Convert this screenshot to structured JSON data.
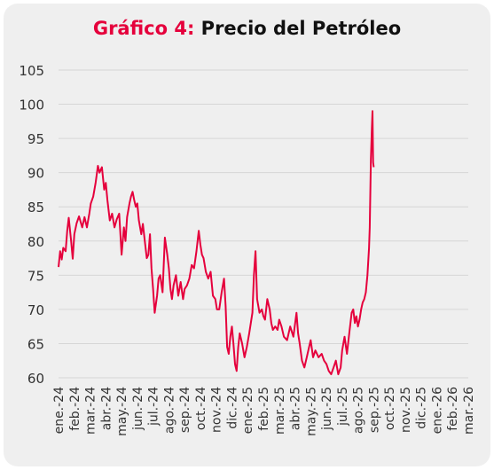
{
  "title": {
    "prefix": "Gráfico 4:",
    "main": "Precio del Petróleo"
  },
  "colors": {
    "line": "#e5003c",
    "title_accent": "#e5003c",
    "grid": "#d6d6d6",
    "background": "#efefef"
  },
  "chart_data": {
    "type": "line",
    "title": "Precio del Petróleo",
    "xlabel": "",
    "ylabel": "",
    "ylim": [
      60,
      105
    ],
    "yticks": [
      60,
      65,
      70,
      75,
      80,
      85,
      90,
      95,
      100,
      105
    ],
    "grid": "horizontal",
    "xticks": [
      "ene.-24",
      "feb.-24",
      "mar.-24",
      "abr.-24",
      "may.-24",
      "jun.-24",
      "jul.-24",
      "ago.-24",
      "sep.-24",
      "oct.-24",
      "nov.-24",
      "dic.-24",
      "ene.-25",
      "feb.-25",
      "mar.-25",
      "abr.-25",
      "may.-25",
      "jun.-25",
      "jul.-25",
      "ago.-25",
      "sep.-25",
      "oct.-25",
      "nov.-25",
      "dic.-25",
      "ene.-26",
      "feb.-26",
      "mar.-26"
    ],
    "series": [
      {
        "values": [
          [
            0.0,
            76.2
          ],
          [
            0.1,
            78.5
          ],
          [
            0.2,
            77.3
          ],
          [
            0.3,
            79.0
          ],
          [
            0.45,
            78.5
          ],
          [
            0.55,
            81.5
          ],
          [
            0.65,
            83.4
          ],
          [
            0.8,
            80.0
          ],
          [
            0.9,
            77.4
          ],
          [
            1.0,
            81.0
          ],
          [
            1.15,
            82.6
          ],
          [
            1.3,
            83.6
          ],
          [
            1.5,
            82.0
          ],
          [
            1.65,
            83.5
          ],
          [
            1.8,
            82.0
          ],
          [
            1.95,
            84.0
          ],
          [
            2.05,
            85.5
          ],
          [
            2.2,
            86.5
          ],
          [
            2.35,
            88.5
          ],
          [
            2.5,
            91.0
          ],
          [
            2.6,
            90.0
          ],
          [
            2.75,
            90.8
          ],
          [
            2.9,
            87.5
          ],
          [
            3.0,
            88.5
          ],
          [
            3.1,
            86.0
          ],
          [
            3.25,
            83.0
          ],
          [
            3.4,
            84.0
          ],
          [
            3.55,
            82.0
          ],
          [
            3.7,
            83.2
          ],
          [
            3.85,
            84.0
          ],
          [
            4.0,
            78.0
          ],
          [
            4.15,
            82.0
          ],
          [
            4.25,
            80.0
          ],
          [
            4.35,
            83.5
          ],
          [
            4.5,
            85.5
          ],
          [
            4.6,
            86.5
          ],
          [
            4.7,
            87.2
          ],
          [
            4.8,
            86.0
          ],
          [
            4.9,
            85.0
          ],
          [
            5.0,
            85.5
          ],
          [
            5.1,
            83.0
          ],
          [
            5.25,
            81.0
          ],
          [
            5.35,
            82.5
          ],
          [
            5.5,
            79.5
          ],
          [
            5.6,
            77.5
          ],
          [
            5.7,
            78.0
          ],
          [
            5.8,
            81.0
          ],
          [
            5.9,
            76.0
          ],
          [
            6.0,
            73.0
          ],
          [
            6.1,
            69.5
          ],
          [
            6.25,
            72.0
          ],
          [
            6.35,
            74.5
          ],
          [
            6.45,
            75.0
          ],
          [
            6.6,
            72.5
          ],
          [
            6.75,
            80.5
          ],
          [
            6.9,
            78.0
          ],
          [
            7.0,
            76.0
          ],
          [
            7.1,
            73.0
          ],
          [
            7.2,
            71.5
          ],
          [
            7.3,
            73.5
          ],
          [
            7.45,
            75.0
          ],
          [
            7.6,
            72.0
          ],
          [
            7.75,
            74.0
          ],
          [
            7.9,
            71.5
          ],
          [
            8.0,
            73.0
          ],
          [
            8.15,
            73.5
          ],
          [
            8.3,
            74.5
          ],
          [
            8.45,
            76.5
          ],
          [
            8.6,
            76.0
          ],
          [
            8.75,
            78.5
          ],
          [
            8.9,
            81.5
          ],
          [
            9.0,
            79.5
          ],
          [
            9.1,
            78.0
          ],
          [
            9.2,
            77.5
          ],
          [
            9.35,
            75.5
          ],
          [
            9.5,
            74.5
          ],
          [
            9.65,
            75.5
          ],
          [
            9.8,
            72.0
          ],
          [
            9.95,
            71.5
          ],
          [
            10.05,
            70.0
          ],
          [
            10.2,
            70.0
          ],
          [
            10.35,
            72.5
          ],
          [
            10.5,
            74.5
          ],
          [
            10.6,
            70.5
          ],
          [
            10.7,
            64.5
          ],
          [
            10.8,
            63.5
          ],
          [
            10.9,
            66.0
          ],
          [
            11.0,
            67.5
          ],
          [
            11.1,
            65.0
          ],
          [
            11.2,
            62.0
          ],
          [
            11.3,
            61.0
          ],
          [
            11.4,
            64.5
          ],
          [
            11.5,
            66.5
          ],
          [
            11.65,
            65.0
          ],
          [
            11.8,
            63.0
          ],
          [
            11.95,
            64.5
          ],
          [
            12.1,
            66.5
          ],
          [
            12.2,
            68.0
          ],
          [
            12.3,
            69.5
          ],
          [
            12.4,
            75.0
          ],
          [
            12.5,
            78.5
          ],
          [
            12.6,
            71.5
          ],
          [
            12.75,
            69.5
          ],
          [
            12.9,
            70.0
          ],
          [
            13.0,
            69.0
          ],
          [
            13.1,
            68.5
          ],
          [
            13.25,
            71.5
          ],
          [
            13.4,
            70.0
          ],
          [
            13.5,
            68.0
          ],
          [
            13.6,
            67.0
          ],
          [
            13.75,
            67.5
          ],
          [
            13.9,
            67.0
          ],
          [
            14.0,
            68.5
          ],
          [
            14.15,
            67.5
          ],
          [
            14.3,
            66.0
          ],
          [
            14.5,
            65.5
          ],
          [
            14.7,
            67.5
          ],
          [
            14.9,
            66.0
          ],
          [
            15.1,
            69.5
          ],
          [
            15.2,
            66.5
          ],
          [
            15.3,
            65.0
          ],
          [
            15.45,
            62.5
          ],
          [
            15.6,
            61.5
          ],
          [
            15.75,
            63.0
          ],
          [
            15.9,
            64.5
          ],
          [
            16.0,
            65.5
          ],
          [
            16.15,
            63.0
          ],
          [
            16.3,
            64.0
          ],
          [
            16.5,
            63.0
          ],
          [
            16.7,
            63.5
          ],
          [
            16.85,
            62.5
          ],
          [
            17.0,
            62.0
          ],
          [
            17.15,
            61.0
          ],
          [
            17.3,
            60.5
          ],
          [
            17.45,
            61.5
          ],
          [
            17.6,
            62.5
          ],
          [
            17.75,
            60.5
          ],
          [
            17.9,
            61.5
          ],
          [
            18.0,
            64.0
          ],
          [
            18.15,
            66.0
          ],
          [
            18.3,
            63.5
          ],
          [
            18.45,
            66.5
          ],
          [
            18.6,
            69.5
          ],
          [
            18.7,
            70.0
          ],
          [
            18.8,
            68.0
          ],
          [
            18.9,
            69.0
          ],
          [
            19.0,
            67.5
          ],
          [
            19.1,
            68.5
          ],
          [
            19.2,
            70.0
          ],
          [
            19.3,
            71.0
          ],
          [
            19.4,
            71.5
          ],
          [
            19.5,
            72.5
          ],
          [
            19.6,
            75.0
          ],
          [
            19.7,
            79.0
          ],
          [
            19.75,
            82.0
          ],
          [
            19.82,
            92.0
          ],
          [
            19.88,
            96.5
          ],
          [
            19.92,
            99.0
          ],
          [
            19.96,
            91.5
          ],
          [
            20.0,
            90.8
          ]
        ]
      }
    ]
  }
}
